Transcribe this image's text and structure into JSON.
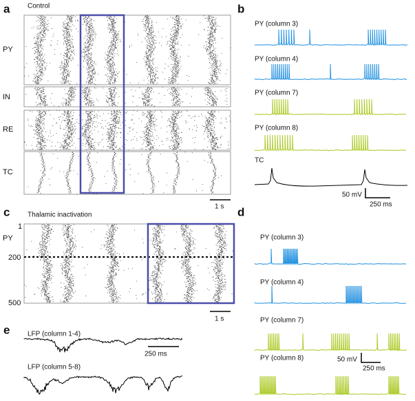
{
  "panel_a": {
    "label": "a",
    "title": "Control",
    "rows": [
      "PY",
      "IN",
      "RE",
      "TC"
    ],
    "scale": "1 s"
  },
  "panel_b": {
    "label": "b",
    "traces": [
      "PY (column 3)",
      "PY (column 4)",
      "PY (column 7)",
      "PY (column 8)",
      "TC"
    ],
    "scale_v": "50 mV",
    "scale_t": "250 ms"
  },
  "panel_c": {
    "label": "c",
    "title": "Thalamic inactivation",
    "axis_labels": [
      "1",
      "PY",
      "200",
      "500"
    ],
    "scale": "1 s"
  },
  "panel_d": {
    "label": "d",
    "traces": [
      "PY (column 3)",
      "PY (column 4)",
      "PY (column 7)",
      "PY (column 8)"
    ],
    "scale_v": "50 mV",
    "scale_t": "250 ms"
  },
  "panel_e": {
    "label": "e",
    "traces": [
      "LFP (column 1-4)",
      "LFP (column 5-8)"
    ],
    "scale": "250 ms"
  }
}
